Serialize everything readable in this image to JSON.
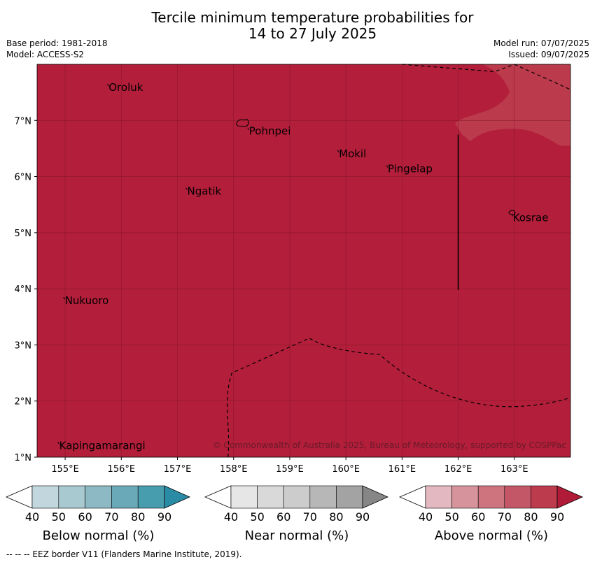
{
  "title": {
    "line1": "Tercile minimum temperature probabilities for",
    "line2": "14 to 27 July 2025"
  },
  "meta": {
    "base_period": "Base period: 1981-2018",
    "model": "Model: ACCESS-S2",
    "model_run": "Model run: 07/07/2025",
    "issued": "Issued: 09/07/2025"
  },
  "map": {
    "fill_color": "#b31e3a",
    "region_color": "#bb3a4b",
    "lon_range": [
      154.5,
      164.0
    ],
    "lat_range": [
      1.0,
      8.0
    ],
    "lon_ticks": [
      {
        "value": 155,
        "label": "155°E"
      },
      {
        "value": 156,
        "label": "156°E"
      },
      {
        "value": 157,
        "label": "157°E"
      },
      {
        "value": 158,
        "label": "158°E"
      },
      {
        "value": 159,
        "label": "159°E"
      },
      {
        "value": 160,
        "label": "160°E"
      },
      {
        "value": 161,
        "label": "161°E"
      },
      {
        "value": 162,
        "label": "162°E"
      },
      {
        "value": 163,
        "label": "163°E"
      }
    ],
    "lat_ticks": [
      {
        "value": 1,
        "label": "1°N"
      },
      {
        "value": 2,
        "label": "2°N"
      },
      {
        "value": 3,
        "label": "3°N"
      },
      {
        "value": 4,
        "label": "4°N"
      },
      {
        "value": 5,
        "label": "5°N"
      },
      {
        "value": 6,
        "label": "6°N"
      },
      {
        "value": 7,
        "label": "7°N"
      }
    ],
    "places": [
      {
        "name": "Oroluk",
        "lon": 155.75,
        "lat": 7.65
      },
      {
        "name": "Pohnpei",
        "lon": 158.25,
        "lat": 6.87
      },
      {
        "name": "Mokil",
        "lon": 159.85,
        "lat": 6.47
      },
      {
        "name": "Pingelap",
        "lon": 160.72,
        "lat": 6.2
      },
      {
        "name": "Ngatik",
        "lon": 157.15,
        "lat": 5.8
      },
      {
        "name": "Kosrae",
        "lon": 162.95,
        "lat": 5.33
      },
      {
        "name": "Nukuoro",
        "lon": 154.97,
        "lat": 3.85
      },
      {
        "name": "Kapingamarangi",
        "lon": 154.87,
        "lat": 1.27
      }
    ],
    "copyright": "© Commonwealth of Australia 2025, Bureau of Meteorology, supported by COSPPac"
  },
  "colorbars": [
    {
      "label": "Below normal (%)",
      "colors": [
        "#c2d7dd",
        "#a8c9cf",
        "#8cb9c3",
        "#6aa9b8",
        "#479cad",
        "#2a8ca4"
      ],
      "ticks": [
        "40",
        "50",
        "60",
        "70",
        "80",
        "90"
      ]
    },
    {
      "label": "Near normal (%)",
      "colors": [
        "#e6e6e6",
        "#d9d9d9",
        "#cccccc",
        "#b7b7b7",
        "#a3a3a3",
        "#868686"
      ],
      "ticks": [
        "40",
        "50",
        "60",
        "70",
        "80",
        "90"
      ]
    },
    {
      "label": "Above normal (%)",
      "colors": [
        "#e3b8c0",
        "#d7939c",
        "#cd747f",
        "#c45767",
        "#bc3b4d",
        "#b01c38"
      ],
      "ticks": [
        "40",
        "50",
        "60",
        "70",
        "80",
        "90"
      ]
    }
  ],
  "footnote": "--  --  -- EEZ border V11 (Flanders Marine Institute, 2019)."
}
